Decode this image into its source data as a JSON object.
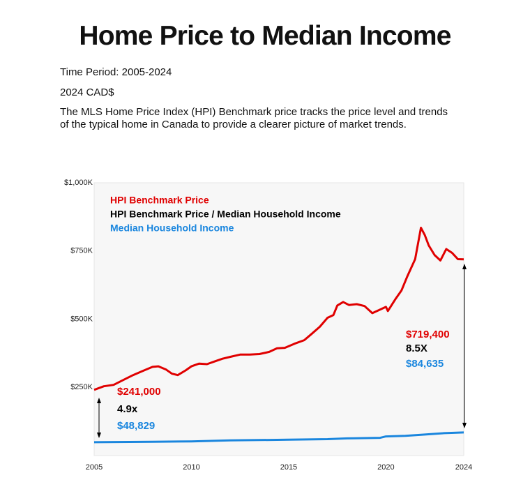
{
  "header": {
    "title": "Home Price to Median Income",
    "period": "Time Period: 2005-2024",
    "currency": "2024 CAD$",
    "description": "The MLS Home Price Index (HPI) Benchmark price tracks the price level and trends of the typical home in Canada to provide a clearer picture of market trends."
  },
  "chart_data": {
    "type": "line",
    "xlim": [
      2005,
      2024
    ],
    "xticks": [
      2005,
      2010,
      2015,
      2020,
      2024
    ],
    "ylim": [
      0,
      1000000
    ],
    "yticks": [
      {
        "value": 250000,
        "label": "$250K"
      },
      {
        "value": 500000,
        "label": "$500K"
      },
      {
        "value": 750000,
        "label": "$750K"
      },
      {
        "value": 1000000,
        "label": "$1,000K"
      }
    ],
    "grid": false,
    "legend": "upper left",
    "series": [
      {
        "name": "HPI Benchmark  Price",
        "color": "#e00000",
        "x": [
          2005,
          2005.5,
          2006,
          2006.5,
          2007,
          2007.5,
          2008,
          2008.3,
          2008.7,
          2009,
          2009.3,
          2009.7,
          2010,
          2010.4,
          2010.8,
          2011.2,
          2011.6,
          2012,
          2012.5,
          2013,
          2013.5,
          2014,
          2014.4,
          2014.8,
          2015.3,
          2015.8,
          2016.2,
          2016.6,
          2017,
          2017.3,
          2017.5,
          2017.8,
          2018.1,
          2018.5,
          2018.9,
          2019.3,
          2019.7,
          2020,
          2020.1,
          2020.5,
          2020.8,
          2021.1,
          2021.5,
          2021.8,
          2022,
          2022.2,
          2022.5,
          2022.8,
          2023.1,
          2023.4,
          2023.7,
          2024
        ],
        "values": [
          241000,
          254000,
          259000,
          277000,
          295000,
          310000,
          325000,
          327000,
          315000,
          300000,
          295000,
          312000,
          327000,
          337000,
          335000,
          345000,
          355000,
          362000,
          370000,
          370000,
          372000,
          380000,
          393000,
          395000,
          410000,
          423000,
          447000,
          472000,
          505000,
          515000,
          550000,
          563000,
          552000,
          555000,
          548000,
          522000,
          535000,
          545000,
          530000,
          575000,
          605000,
          657000,
          720000,
          835000,
          808000,
          770000,
          735000,
          715000,
          757000,
          743000,
          720000,
          719400
        ],
        "start_label": "$241,000",
        "end_label": "$719,400"
      },
      {
        "name": "HPI Benchmark Price / Median Household Income",
        "color": "#000000",
        "line": false,
        "x": [
          2005,
          2024
        ],
        "values": [
          4.9,
          8.5
        ],
        "start_label": "4.9x",
        "end_label": "8.5X"
      },
      {
        "name": "Median Household Income",
        "color": "#1a86de",
        "x": [
          2005,
          2008,
          2010,
          2012,
          2015,
          2017,
          2018,
          2019.7,
          2020,
          2021,
          2022,
          2023,
          2024
        ],
        "values": [
          48829,
          50500,
          52000,
          55500,
          58000,
          60000,
          63000,
          65000,
          70000,
          72000,
          77000,
          82000,
          84635
        ],
        "start_label": "$48,829",
        "end_label": "$84,635"
      }
    ]
  }
}
